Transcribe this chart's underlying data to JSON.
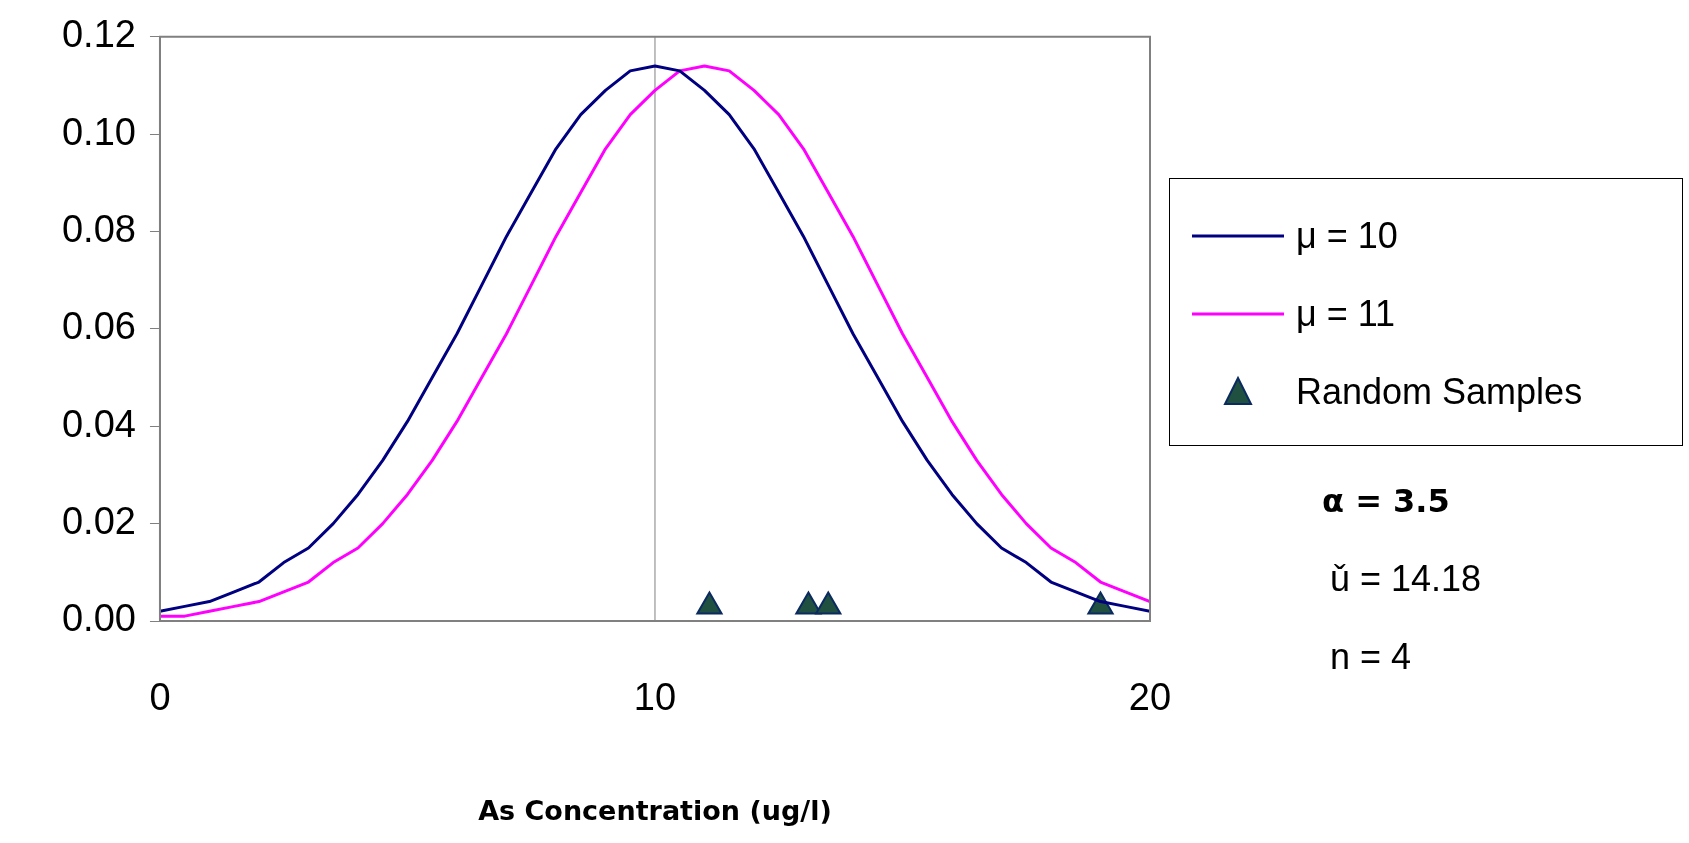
{
  "chart_data": {
    "type": "line",
    "xlabel": "As Concentration (ug/l)",
    "xlim": [
      0,
      20
    ],
    "xticks": [
      0,
      10,
      20
    ],
    "ylim": [
      0,
      0.12
    ],
    "yticks": [
      {
        "value": 0,
        "label": "0.00"
      },
      {
        "value": 0.02,
        "label": "0.02"
      },
      {
        "value": 0.04,
        "label": "0.04"
      },
      {
        "value": 0.06,
        "label": "0.06"
      },
      {
        "value": 0.08,
        "label": "0.08"
      },
      {
        "value": 0.1,
        "label": "0.10"
      },
      {
        "value": 0.12,
        "label": "0.12"
      }
    ],
    "grid": false,
    "legend": "right",
    "line_style": "solid",
    "ref_lines": [
      {
        "axis": "x",
        "value": 10,
        "color": "#808080"
      }
    ],
    "annotations": [
      "α = 3.5",
      "ǔ = 14.18",
      "n = 4"
    ],
    "x": [
      0,
      0.5,
      1,
      1.5,
      2,
      2.5,
      3,
      3.5,
      4,
      4.5,
      5,
      5.5,
      6,
      6.5,
      7,
      7.5,
      8,
      8.5,
      9,
      9.5,
      10,
      10.5,
      11,
      11.5,
      12,
      12.5,
      13,
      13.5,
      14,
      14.5,
      15,
      15.5,
      16,
      16.5,
      17,
      17.5,
      18,
      18.5,
      19,
      19.5,
      20
    ],
    "series": [
      {
        "name": "μ = 10",
        "type": "line",
        "color": "#000080",
        "marker": "none",
        "values": [
          0.002,
          0.003,
          0.004,
          0.006,
          0.008,
          0.012,
          0.015,
          0.02,
          0.026,
          0.033,
          0.041,
          0.05,
          0.059,
          0.069,
          0.079,
          0.088,
          0.097,
          0.104,
          0.109,
          0.113,
          0.114,
          0.113,
          0.109,
          0.104,
          0.097,
          0.088,
          0.079,
          0.069,
          0.059,
          0.05,
          0.041,
          0.033,
          0.026,
          0.02,
          0.015,
          0.012,
          0.008,
          0.006,
          0.004,
          0.003,
          0.002
        ]
      },
      {
        "name": "μ = 11",
        "type": "line",
        "color": "#ff00ff",
        "marker": "none",
        "values": [
          0.001,
          0.001,
          0.002,
          0.003,
          0.004,
          0.006,
          0.008,
          0.012,
          0.015,
          0.02,
          0.026,
          0.033,
          0.041,
          0.05,
          0.059,
          0.069,
          0.079,
          0.088,
          0.097,
          0.104,
          0.109,
          0.113,
          0.114,
          0.113,
          0.109,
          0.104,
          0.097,
          0.088,
          0.079,
          0.069,
          0.059,
          0.05,
          0.041,
          0.033,
          0.026,
          0.02,
          0.015,
          0.012,
          0.008,
          0.006,
          0.004
        ]
      },
      {
        "name": "Random Samples",
        "type": "scatter",
        "color": "#1f5040",
        "marker": "triangle",
        "x": [
          11.1,
          13.1,
          13.5,
          19.0
        ],
        "values": [
          0.003,
          0.003,
          0.003,
          0.003
        ]
      }
    ]
  }
}
